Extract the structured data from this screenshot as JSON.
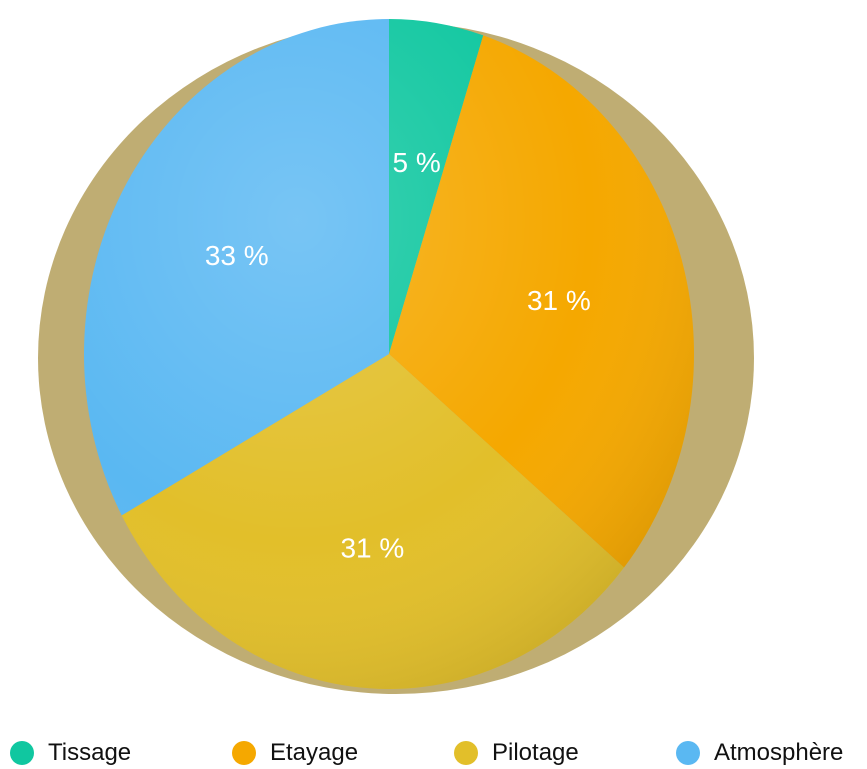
{
  "chart_data": {
    "type": "pie",
    "categories": [
      "Tissage",
      "Etayage",
      "Pilotage",
      "Atmosphère"
    ],
    "values": [
      5,
      31,
      31,
      33
    ],
    "data_labels": [
      "5 %",
      "31 %",
      "31 %",
      "33 %"
    ],
    "colors": [
      "#10c7a0",
      "#f5a800",
      "#e2bf2a",
      "#5ab8f2"
    ],
    "legend_placement": "bottom",
    "start_angle": "top",
    "direction": "clockwise"
  }
}
